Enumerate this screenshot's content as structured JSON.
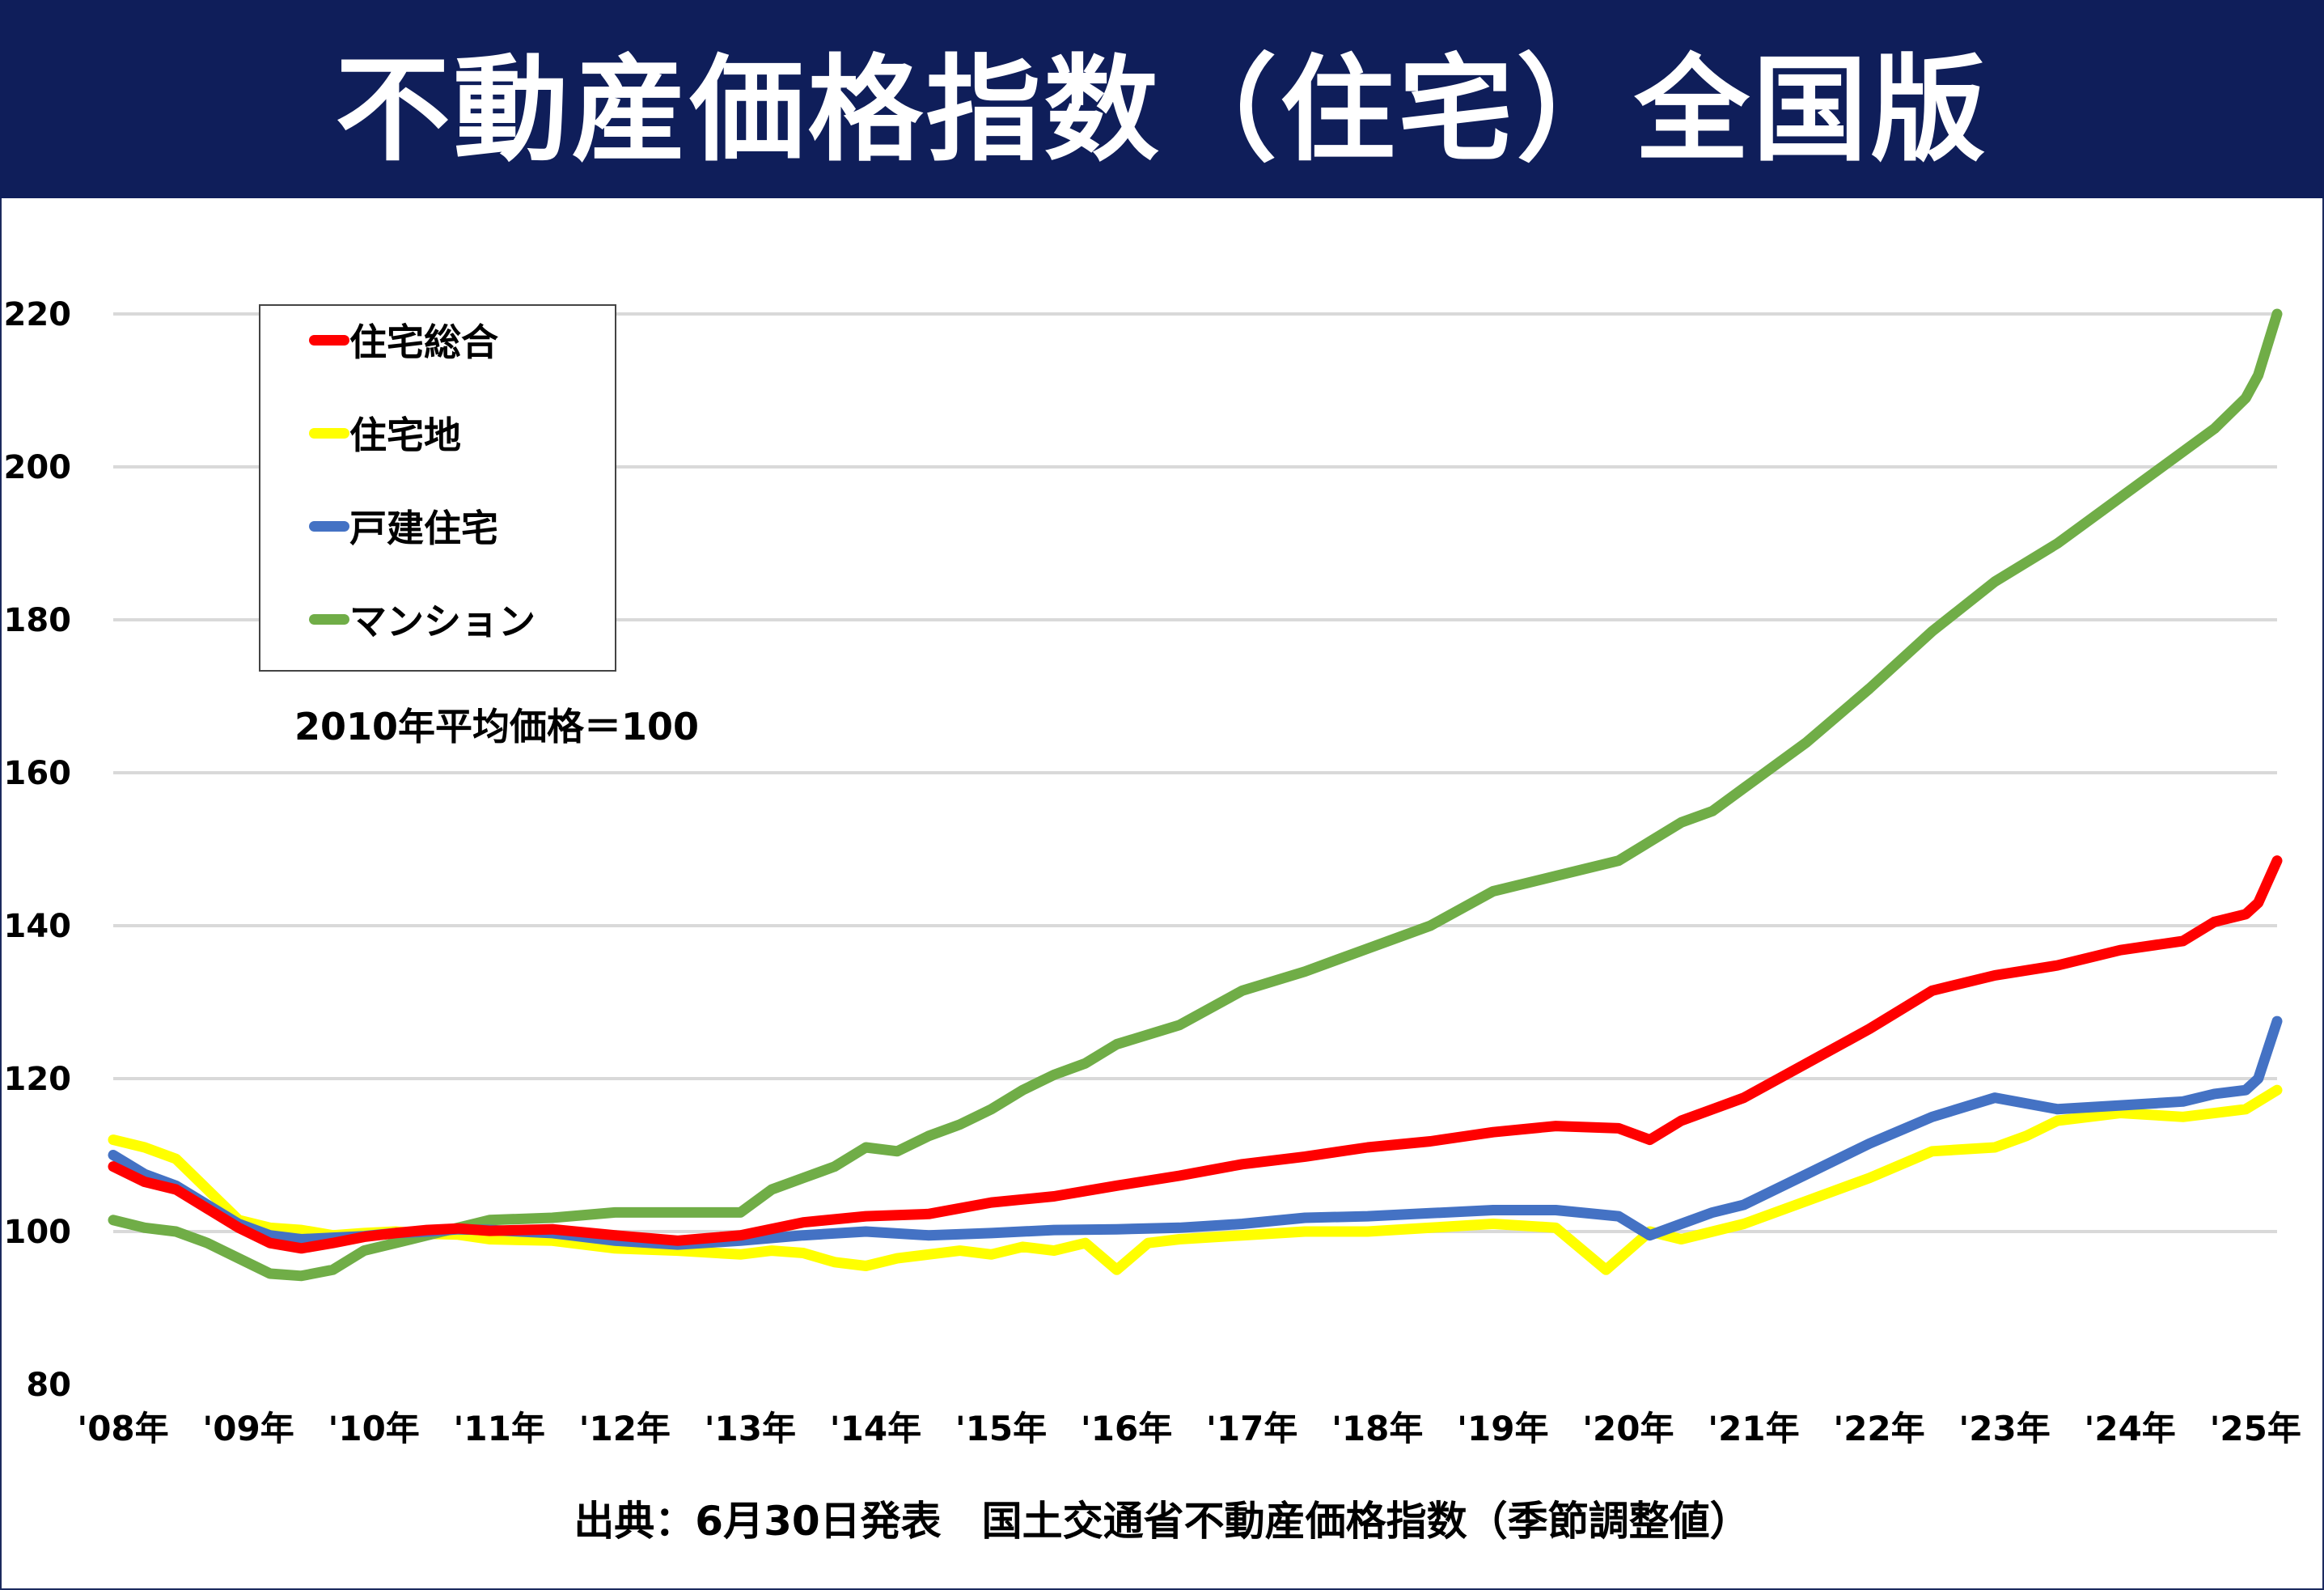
{
  "title": "不動産価格指数（住宅）全国版",
  "note": "2010年平均価格＝100",
  "source": "出典：6月30日発表　国土交通省不動産価格指数（季節調整値）",
  "chart_data": {
    "type": "line",
    "ylim": [
      80,
      220
    ],
    "yticks": [
      80,
      100,
      120,
      140,
      160,
      180,
      200,
      220
    ],
    "x_labels": [
      "'08年",
      "'09年",
      "'10年",
      "'11年",
      "'12年",
      "'13年",
      "'14年",
      "'15年",
      "'16年",
      "'17年",
      "'18年",
      "'19年",
      "'20年",
      "'21年",
      "'22年",
      "'23年",
      "'24年",
      "'25年"
    ],
    "x_start": 2008.0,
    "x_end": 2025.25,
    "grid": true,
    "legend_position": "top-left",
    "series": [
      {
        "name": "住宅総合",
        "color": "#ff0000",
        "points": [
          [
            2008.0,
            108.5
          ],
          [
            2008.25,
            106.5
          ],
          [
            2008.5,
            105.5
          ],
          [
            2008.75,
            103
          ],
          [
            2009.0,
            100.5
          ],
          [
            2009.25,
            98.5
          ],
          [
            2009.5,
            97.8
          ],
          [
            2009.75,
            98.5
          ],
          [
            2010.0,
            99.3
          ],
          [
            2010.25,
            99.8
          ],
          [
            2010.5,
            100.2
          ],
          [
            2010.75,
            100.4
          ],
          [
            2011.0,
            100.1
          ],
          [
            2011.5,
            100.3
          ],
          [
            2012.0,
            99.5
          ],
          [
            2012.5,
            98.8
          ],
          [
            2013.0,
            99.5
          ],
          [
            2013.5,
            101.2
          ],
          [
            2014.0,
            102.0
          ],
          [
            2014.5,
            102.3
          ],
          [
            2015.0,
            103.8
          ],
          [
            2015.5,
            104.6
          ],
          [
            2016.0,
            106.0
          ],
          [
            2016.5,
            107.3
          ],
          [
            2017.0,
            108.8
          ],
          [
            2017.5,
            109.8
          ],
          [
            2018.0,
            111.0
          ],
          [
            2018.5,
            111.8
          ],
          [
            2019.0,
            113.0
          ],
          [
            2019.5,
            113.8
          ],
          [
            2020.0,
            113.5
          ],
          [
            2020.25,
            112.0
          ],
          [
            2020.5,
            114.5
          ],
          [
            2020.75,
            116.0
          ],
          [
            2021.0,
            117.5
          ],
          [
            2021.5,
            122.0
          ],
          [
            2022.0,
            126.5
          ],
          [
            2022.5,
            131.5
          ],
          [
            2023.0,
            133.5
          ],
          [
            2023.5,
            134.8
          ],
          [
            2024.0,
            136.8
          ],
          [
            2024.5,
            138.0
          ],
          [
            2024.75,
            140.5
          ],
          [
            2025.0,
            141.5
          ],
          [
            2025.1,
            143.0
          ],
          [
            2025.25,
            148.5
          ]
        ]
      },
      {
        "name": "住宅地",
        "color": "#ffff00",
        "points": [
          [
            2008.0,
            112.0
          ],
          [
            2008.25,
            111.0
          ],
          [
            2008.5,
            109.5
          ],
          [
            2008.75,
            105.5
          ],
          [
            2009.0,
            101.5
          ],
          [
            2009.25,
            100.5
          ],
          [
            2009.5,
            100.2
          ],
          [
            2009.75,
            99.5
          ],
          [
            2010.0,
            99.8
          ],
          [
            2010.25,
            100.0
          ],
          [
            2010.5,
            99.7
          ],
          [
            2010.75,
            99.6
          ],
          [
            2011.0,
            99.0
          ],
          [
            2011.5,
            98.8
          ],
          [
            2012.0,
            97.8
          ],
          [
            2012.5,
            97.5
          ],
          [
            2013.0,
            97.0
          ],
          [
            2013.25,
            97.5
          ],
          [
            2013.5,
            97.2
          ],
          [
            2013.75,
            96.0
          ],
          [
            2014.0,
            95.5
          ],
          [
            2014.25,
            96.5
          ],
          [
            2014.5,
            97.0
          ],
          [
            2014.75,
            97.5
          ],
          [
            2015.0,
            97.0
          ],
          [
            2015.25,
            98.0
          ],
          [
            2015.5,
            97.5
          ],
          [
            2015.75,
            98.5
          ],
          [
            2016.0,
            95.0
          ],
          [
            2016.25,
            98.5
          ],
          [
            2016.5,
            99.0
          ],
          [
            2017.0,
            99.5
          ],
          [
            2017.5,
            100.0
          ],
          [
            2018.0,
            100.0
          ],
          [
            2018.5,
            100.5
          ],
          [
            2019.0,
            101.0
          ],
          [
            2019.5,
            100.5
          ],
          [
            2019.9,
            95.0
          ],
          [
            2020.25,
            100.0
          ],
          [
            2020.5,
            99.0
          ],
          [
            2020.75,
            100.0
          ],
          [
            2021.0,
            101.0
          ],
          [
            2021.5,
            104.0
          ],
          [
            2022.0,
            107.0
          ],
          [
            2022.5,
            110.5
          ],
          [
            2023.0,
            111.0
          ],
          [
            2023.25,
            112.5
          ],
          [
            2023.5,
            114.5
          ],
          [
            2024.0,
            115.5
          ],
          [
            2024.5,
            115.0
          ],
          [
            2025.0,
            116.0
          ],
          [
            2025.25,
            118.5
          ]
        ]
      },
      {
        "name": "戸建住宅",
        "color": "#4472c4",
        "points": [
          [
            2008.0,
            110.0
          ],
          [
            2008.25,
            107.5
          ],
          [
            2008.5,
            106.0
          ],
          [
            2008.75,
            103.5
          ],
          [
            2009.0,
            101.0
          ],
          [
            2009.25,
            99.5
          ],
          [
            2009.5,
            99.0
          ],
          [
            2009.75,
            99.2
          ],
          [
            2010.0,
            99.4
          ],
          [
            2010.25,
            99.8
          ],
          [
            2010.5,
            100.0
          ],
          [
            2010.75,
            100.3
          ],
          [
            2011.0,
            100.2
          ],
          [
            2011.5,
            99.8
          ],
          [
            2012.0,
            98.8
          ],
          [
            2012.5,
            98.3
          ],
          [
            2013.0,
            98.8
          ],
          [
            2013.5,
            99.5
          ],
          [
            2014.0,
            100.0
          ],
          [
            2014.5,
            99.5
          ],
          [
            2015.0,
            99.8
          ],
          [
            2015.5,
            100.2
          ],
          [
            2016.0,
            100.3
          ],
          [
            2016.5,
            100.5
          ],
          [
            2017.0,
            101.0
          ],
          [
            2017.5,
            101.8
          ],
          [
            2018.0,
            102.0
          ],
          [
            2018.5,
            102.4
          ],
          [
            2019.0,
            102.8
          ],
          [
            2019.5,
            102.8
          ],
          [
            2020.0,
            102.0
          ],
          [
            2020.25,
            99.5
          ],
          [
            2020.5,
            101.0
          ],
          [
            2020.75,
            102.5
          ],
          [
            2021.0,
            103.5
          ],
          [
            2021.5,
            107.5
          ],
          [
            2022.0,
            111.5
          ],
          [
            2022.5,
            115.0
          ],
          [
            2023.0,
            117.5
          ],
          [
            2023.5,
            116.0
          ],
          [
            2024.0,
            116.5
          ],
          [
            2024.5,
            117.0
          ],
          [
            2024.75,
            118.0
          ],
          [
            2025.0,
            118.5
          ],
          [
            2025.1,
            120.0
          ],
          [
            2025.25,
            127.5
          ]
        ]
      },
      {
        "name": "マンション",
        "color": "#70ad47",
        "points": [
          [
            2008.0,
            101.5
          ],
          [
            2008.25,
            100.5
          ],
          [
            2008.5,
            100.0
          ],
          [
            2008.75,
            98.5
          ],
          [
            2009.0,
            96.5
          ],
          [
            2009.25,
            94.5
          ],
          [
            2009.5,
            94.2
          ],
          [
            2009.75,
            95.0
          ],
          [
            2010.0,
            97.5
          ],
          [
            2010.25,
            98.5
          ],
          [
            2010.5,
            99.5
          ],
          [
            2010.75,
            100.5
          ],
          [
            2011.0,
            101.5
          ],
          [
            2011.5,
            101.8
          ],
          [
            2012.0,
            102.5
          ],
          [
            2012.5,
            102.5
          ],
          [
            2013.0,
            102.5
          ],
          [
            2013.25,
            105.5
          ],
          [
            2013.5,
            107.0
          ],
          [
            2013.75,
            108.5
          ],
          [
            2014.0,
            111.0
          ],
          [
            2014.25,
            110.5
          ],
          [
            2014.5,
            112.5
          ],
          [
            2014.75,
            114.0
          ],
          [
            2015.0,
            116.0
          ],
          [
            2015.25,
            118.5
          ],
          [
            2015.5,
            120.5
          ],
          [
            2015.75,
            122.0
          ],
          [
            2016.0,
            124.5
          ],
          [
            2016.5,
            127.0
          ],
          [
            2017.0,
            131.5
          ],
          [
            2017.5,
            134.0
          ],
          [
            2018.0,
            137.0
          ],
          [
            2018.5,
            140.0
          ],
          [
            2019.0,
            144.5
          ],
          [
            2019.5,
            146.5
          ],
          [
            2020.0,
            148.5
          ],
          [
            2020.25,
            151.0
          ],
          [
            2020.5,
            153.5
          ],
          [
            2020.75,
            155.0
          ],
          [
            2021.0,
            158.0
          ],
          [
            2021.5,
            164.0
          ],
          [
            2022.0,
            171.0
          ],
          [
            2022.5,
            178.5
          ],
          [
            2023.0,
            185.0
          ],
          [
            2023.5,
            190.0
          ],
          [
            2024.0,
            196.0
          ],
          [
            2024.5,
            202.0
          ],
          [
            2024.75,
            205.0
          ],
          [
            2025.0,
            209.0
          ],
          [
            2025.1,
            212.0
          ],
          [
            2025.25,
            220.0
          ]
        ]
      }
    ]
  }
}
